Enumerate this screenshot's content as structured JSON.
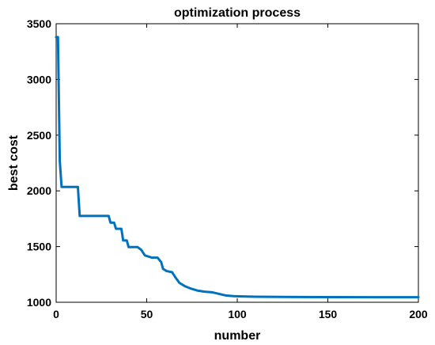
{
  "chart_data": {
    "type": "line",
    "title": "optimization process",
    "xlabel": "number",
    "ylabel": "best cost",
    "xlim": [
      0,
      200
    ],
    "ylim": [
      1000,
      3500
    ],
    "xticks": [
      0,
      50,
      100,
      150,
      200
    ],
    "yticks": [
      1000,
      1500,
      2000,
      2500,
      3000,
      3500
    ],
    "grid": true,
    "series": [
      {
        "color": "#0072BD",
        "points": [
          [
            0,
            3380
          ],
          [
            1,
            3380
          ],
          [
            2,
            2270
          ],
          [
            3,
            2035
          ],
          [
            12,
            2035
          ],
          [
            13,
            1775
          ],
          [
            29,
            1775
          ],
          [
            30,
            1715
          ],
          [
            32,
            1715
          ],
          [
            33,
            1660
          ],
          [
            36,
            1660
          ],
          [
            37,
            1555
          ],
          [
            39,
            1555
          ],
          [
            40,
            1495
          ],
          [
            45,
            1495
          ],
          [
            47,
            1470
          ],
          [
            49,
            1420
          ],
          [
            53,
            1400
          ],
          [
            56,
            1400
          ],
          [
            58,
            1360
          ],
          [
            59,
            1300
          ],
          [
            61,
            1280
          ],
          [
            64,
            1270
          ],
          [
            66,
            1220
          ],
          [
            68,
            1175
          ],
          [
            71,
            1145
          ],
          [
            74,
            1125
          ],
          [
            78,
            1105
          ],
          [
            82,
            1095
          ],
          [
            86,
            1090
          ],
          [
            90,
            1075
          ],
          [
            94,
            1060
          ],
          [
            98,
            1055
          ],
          [
            103,
            1052
          ],
          [
            110,
            1050
          ],
          [
            125,
            1048
          ],
          [
            150,
            1046
          ],
          [
            175,
            1045
          ],
          [
            200,
            1045
          ]
        ]
      }
    ]
  }
}
